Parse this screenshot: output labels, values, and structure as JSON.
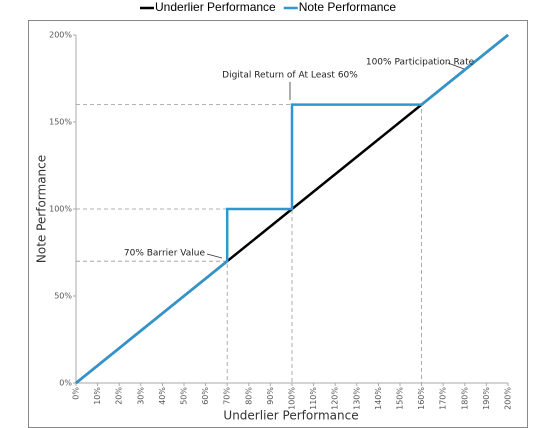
{
  "chart_data": {
    "type": "line",
    "xlabel": "Underlier Performance",
    "ylabel": "Note Performance",
    "series": [
      {
        "name": "Underlier Performance",
        "color": "#000000",
        "x": [
          0,
          200
        ],
        "values": [
          0,
          200
        ]
      },
      {
        "name": "Note Performance",
        "color": "#2f96d0",
        "x": [
          0,
          70,
          70,
          100,
          100,
          160,
          200
        ],
        "values": [
          0,
          70,
          100,
          100,
          160,
          160,
          200
        ]
      }
    ],
    "annotations": [
      "100% Participation Rate",
      "Digital Return of At Least 60%",
      "70% Barrier Value"
    ],
    "xlim": [
      0,
      200
    ],
    "ylim": [
      0,
      200
    ],
    "xticks": [
      {
        "value": 0,
        "label": "0%"
      },
      {
        "value": 10,
        "label": "10%"
      },
      {
        "value": 20,
        "label": "20%"
      },
      {
        "value": 30,
        "label": "30%"
      },
      {
        "value": 40,
        "label": "40%"
      },
      {
        "value": 50,
        "label": "50%"
      },
      {
        "value": 60,
        "label": "60%"
      },
      {
        "value": 70,
        "label": "70%"
      },
      {
        "value": 80,
        "label": "80%"
      },
      {
        "value": 90,
        "label": "90%"
      },
      {
        "value": 100,
        "label": "100%"
      },
      {
        "value": 110,
        "label": "110%"
      },
      {
        "value": 120,
        "label": "120%"
      },
      {
        "value": 130,
        "label": "130%"
      },
      {
        "value": 140,
        "label": "140%"
      },
      {
        "value": 150,
        "label": "150%"
      },
      {
        "value": 160,
        "label": "160%"
      },
      {
        "value": 170,
        "label": "170%"
      },
      {
        "value": 180,
        "label": "180%"
      },
      {
        "value": 190,
        "label": "190%"
      },
      {
        "value": 200,
        "label": "200%"
      }
    ],
    "yticks": [
      {
        "value": 0,
        "label": "0%"
      },
      {
        "value": 50,
        "label": "50%"
      },
      {
        "value": 100,
        "label": "100%"
      },
      {
        "value": 150,
        "label": "150%"
      },
      {
        "value": 200,
        "label": "200%"
      }
    ],
    "grid": false
  }
}
